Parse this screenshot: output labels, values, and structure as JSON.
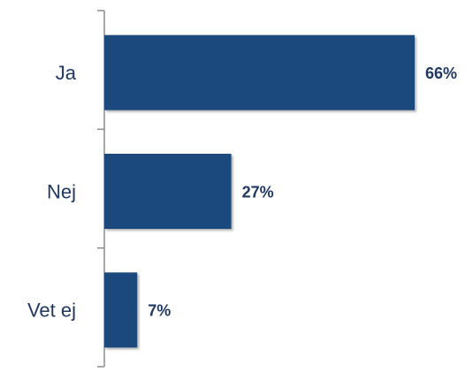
{
  "chart_data": {
    "type": "barh",
    "categories": [
      "Ja",
      "Nej",
      "Vet ej"
    ],
    "values": [
      66,
      27,
      7
    ],
    "value_labels": [
      "66%",
      "27%",
      "7%"
    ],
    "color": "#1f497d"
  }
}
